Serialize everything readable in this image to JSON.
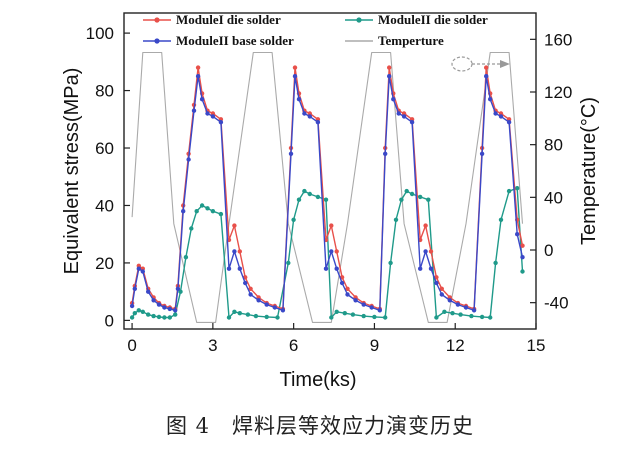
{
  "caption": "图 4　焊料层等效应力演变历史",
  "chart_data": {
    "type": "line",
    "xlabel": "Time(ks)",
    "ylabel": "Equivalent stress(MPa)",
    "y2label": "Temperature(°C)",
    "xlim": [
      -0.3,
      15
    ],
    "ylim": [
      -3,
      107
    ],
    "y2lim": [
      -60,
      180
    ],
    "xticks": [
      0,
      3,
      6,
      9,
      12,
      15
    ],
    "yticks": [
      0,
      20,
      40,
      60,
      80,
      100
    ],
    "y2ticks": [
      -40,
      0,
      40,
      80,
      120,
      160
    ],
    "legend": {
      "position": "top",
      "entries": [
        {
          "name": "ModuleI  die solder",
          "color": "#e8504a"
        },
        {
          "name": "ModuleII die solder",
          "color": "#1f9a8a"
        },
        {
          "name": "ModuleII base solder",
          "color": "#3a48c8"
        },
        {
          "name": "Temperture",
          "color": "#aaaaaa"
        }
      ]
    },
    "series": [
      {
        "name": "ModuleI  die solder",
        "axis": "left",
        "color": "#e8504a",
        "x": [
          0.0,
          0.1,
          0.25,
          0.4,
          0.6,
          0.8,
          1.0,
          1.2,
          1.4,
          1.6,
          1.7,
          1.9,
          2.1,
          2.3,
          2.45,
          2.6,
          2.8,
          3.0,
          3.3,
          3.6,
          3.8,
          4.0,
          4.2,
          4.4,
          4.7,
          5.0,
          5.3,
          5.6,
          5.9,
          6.05,
          6.2,
          6.4,
          6.6,
          6.9,
          7.2,
          7.4,
          7.6,
          7.8,
          8.0,
          8.3,
          8.6,
          8.9,
          9.2,
          9.4,
          9.55,
          9.7,
          9.9,
          10.1,
          10.4,
          10.7,
          10.9,
          11.1,
          11.3,
          11.5,
          11.8,
          12.1,
          12.4,
          12.7,
          13.0,
          13.15,
          13.3,
          13.5,
          13.7,
          14.0,
          14.3,
          14.5
        ],
        "values": [
          6,
          12,
          19,
          18,
          11,
          8,
          6,
          5,
          4.5,
          4,
          12,
          40,
          58,
          75,
          88,
          79,
          73,
          72,
          70,
          28,
          33,
          24,
          15,
          11,
          8,
          6,
          5,
          4,
          60,
          88,
          79,
          73,
          72,
          70,
          28,
          33,
          24,
          15,
          11,
          8,
          6,
          5,
          4,
          60,
          88,
          79,
          73,
          72,
          70,
          28,
          33,
          24,
          15,
          11,
          8,
          6,
          5,
          4,
          60,
          88,
          79,
          73,
          72,
          70,
          35,
          26
        ]
      },
      {
        "name": "ModuleII base solder",
        "axis": "left",
        "color": "#3a48c8",
        "x": [
          0.0,
          0.1,
          0.25,
          0.4,
          0.6,
          0.8,
          1.0,
          1.2,
          1.4,
          1.6,
          1.7,
          1.9,
          2.1,
          2.3,
          2.45,
          2.6,
          2.8,
          3.0,
          3.3,
          3.6,
          3.8,
          4.0,
          4.2,
          4.4,
          4.7,
          5.0,
          5.3,
          5.6,
          5.9,
          6.05,
          6.2,
          6.4,
          6.6,
          6.9,
          7.2,
          7.4,
          7.6,
          7.8,
          8.0,
          8.3,
          8.6,
          8.9,
          9.2,
          9.4,
          9.55,
          9.7,
          9.9,
          10.1,
          10.4,
          10.7,
          10.9,
          11.1,
          11.3,
          11.5,
          11.8,
          12.1,
          12.4,
          12.7,
          13.0,
          13.15,
          13.3,
          13.5,
          13.7,
          14.0,
          14.3,
          14.5
        ],
        "values": [
          5,
          11,
          18,
          17,
          10,
          7,
          5.5,
          4.5,
          4,
          3.5,
          11,
          38,
          56,
          73,
          85,
          77,
          72,
          71,
          69,
          18,
          24,
          18,
          13,
          9,
          7,
          5.5,
          4.5,
          3.5,
          58,
          85,
          77,
          72,
          71,
          69,
          18,
          24,
          18,
          13,
          9,
          7,
          5.5,
          4.5,
          3.5,
          58,
          85,
          77,
          72,
          71,
          69,
          18,
          24,
          18,
          13,
          9,
          7,
          5.5,
          4.5,
          3.5,
          58,
          85,
          77,
          72,
          71,
          69,
          30,
          22
        ]
      },
      {
        "name": "ModuleII die solder",
        "axis": "left",
        "color": "#1f9a8a",
        "x": [
          0.0,
          0.1,
          0.25,
          0.4,
          0.6,
          0.8,
          1.0,
          1.2,
          1.4,
          1.6,
          1.8,
          2.0,
          2.2,
          2.4,
          2.6,
          2.8,
          3.0,
          3.3,
          3.6,
          3.8,
          4.0,
          4.3,
          4.6,
          5.0,
          5.4,
          5.8,
          6.0,
          6.2,
          6.4,
          6.6,
          6.9,
          7.2,
          7.4,
          7.6,
          7.9,
          8.2,
          8.6,
          9.0,
          9.4,
          9.6,
          9.8,
          10.0,
          10.2,
          10.4,
          10.7,
          11.0,
          11.3,
          11.6,
          11.9,
          12.2,
          12.6,
          13.0,
          13.3,
          13.5,
          13.7,
          14.0,
          14.3,
          14.5
        ],
        "values": [
          1,
          2.5,
          3.5,
          3,
          2,
          1.5,
          1.2,
          1,
          1,
          2,
          10,
          22,
          32,
          38,
          40,
          39,
          38,
          37,
          1,
          3,
          2.5,
          2,
          1.5,
          1.2,
          1,
          20,
          35,
          42,
          45,
          44,
          43,
          42,
          1,
          3,
          2.5,
          2,
          1.5,
          1.2,
          1,
          20,
          35,
          42,
          45,
          44,
          43,
          42,
          1,
          3,
          2.5,
          2,
          1.5,
          1.2,
          1,
          20,
          35,
          45,
          46,
          17
        ]
      },
      {
        "name": "Temperture",
        "axis": "right",
        "color": "#aaaaaa",
        "x": [
          0.0,
          0.4,
          1.1,
          1.55,
          2.4,
          3.1,
          3.6,
          4.5,
          5.2,
          5.8,
          6.7,
          7.4,
          8.0,
          8.9,
          9.6,
          10.1,
          11.0,
          11.7,
          12.4,
          13.3,
          14.0,
          14.5
        ],
        "values": [
          25,
          150,
          150,
          20,
          -55,
          -55,
          20,
          150,
          150,
          20,
          -55,
          -55,
          20,
          150,
          150,
          20,
          -55,
          -55,
          20,
          150,
          150,
          20
        ]
      }
    ]
  }
}
